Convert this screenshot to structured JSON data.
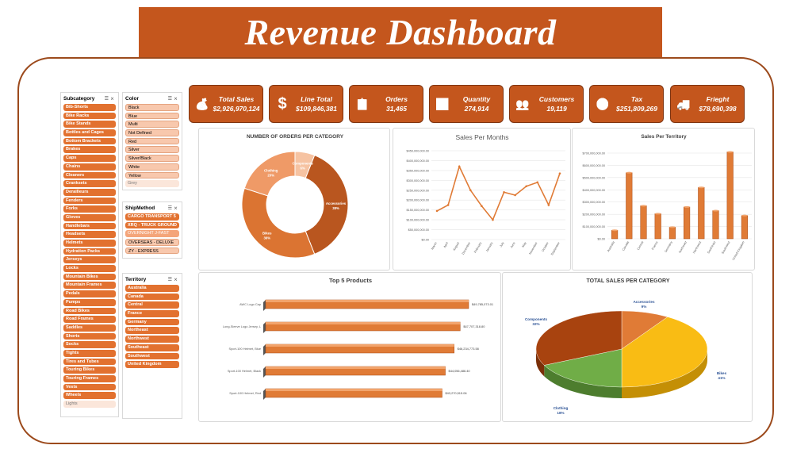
{
  "dashboard_title": "Revenue Dashboard",
  "colors": {
    "accent": "#c4561d",
    "bar": "#e07b36",
    "frame": "#9c4a1c"
  },
  "slicers": {
    "subcategory": {
      "title": "Subcategory",
      "items": [
        "Bib-Shorts",
        "Bike Racks",
        "Bike Stands",
        "Bottles and Cages",
        "Bottom Brackets",
        "Brakes",
        "Caps",
        "Chains",
        "Cleaners",
        "Cranksets",
        "Derailleurs",
        "Fenders",
        "Forks",
        "Gloves",
        "Handlebars",
        "Headsets",
        "Helmets",
        "Hydration Packs",
        "Jerseys",
        "Locks",
        "Mountain Bikes",
        "Mountain Frames",
        "Pedals",
        "Pumps",
        "Road Bikes",
        "Road Frames",
        "Saddles",
        "Shorts",
        "Socks",
        "Tights",
        "Tires and Tubes",
        "Touring Bikes",
        "Touring Frames",
        "Vests",
        "Wheels",
        "Lights"
      ]
    },
    "color": {
      "title": "Color",
      "items": [
        "Black",
        "Blue",
        "Multi",
        "Not Defined",
        "Red",
        "Silver",
        "Silver/Black",
        "White",
        "Yellow",
        "Grey"
      ]
    },
    "shipmethod": {
      "title": "ShipMethod",
      "items": [
        "CARGO TRANSPORT 5",
        "XRQ - TRUCK GROUND",
        "OVERNIGHT J-FAST",
        "OVERSEAS - DELUXE",
        "ZY - EXPRESS"
      ]
    },
    "territory": {
      "title": "Territory",
      "items": [
        "Australia",
        "Canada",
        "Central",
        "France",
        "Germany",
        "Northeast",
        "Northwest",
        "Southeast",
        "Southwest",
        "United Kingdom"
      ]
    }
  },
  "kpis": [
    {
      "label": "Total Sales",
      "value": "$2,926,970,124",
      "icon": "money-bag-icon"
    },
    {
      "label": "Line Total",
      "value": "$109,846,381",
      "icon": "dollar-icon"
    },
    {
      "label": "Orders",
      "value": "31,465",
      "icon": "clipboard-icon"
    },
    {
      "label": "Quantity",
      "value": "274,914",
      "icon": "presentation-icon"
    },
    {
      "label": "Customers",
      "value": "19,119",
      "icon": "people-icon"
    },
    {
      "label": "Tax",
      "value": "$251,809,269",
      "icon": "coins-icon"
    },
    {
      "label": "Frieght",
      "value": "$78,690,398",
      "icon": "truck-icon"
    }
  ],
  "chart_data": [
    {
      "id": "orders-per-category",
      "type": "pie",
      "title": "NUMBER OF ORDERS PER CATEGORY",
      "hole": true,
      "labels": [
        "Accessories",
        "Bikes",
        "Clothing",
        "Components"
      ],
      "values": [
        38,
        36,
        20,
        6
      ],
      "colors": [
        "#b9561f",
        "#db7432",
        "#ef9a67",
        "#f6c3a2"
      ]
    },
    {
      "id": "sales-per-months",
      "type": "line",
      "title": "Sales Per Months",
      "categories": [
        "March",
        "April",
        "August",
        "December",
        "February",
        "January",
        "July",
        "June",
        "May",
        "November",
        "October",
        "September"
      ],
      "values": [
        145000000,
        175000000,
        370000000,
        250000000,
        170000000,
        100000000,
        240000000,
        225000000,
        270000000,
        290000000,
        175000000,
        335000000
      ],
      "ylim": [
        0,
        450000000
      ],
      "yticks": [
        "$0.00",
        "$50,000,000.00",
        "$100,000,000.00",
        "$150,000,000.00",
        "$200,000,000.00",
        "$250,000,000.00",
        "$300,000,000.00",
        "$350,000,000.00",
        "$400,000,000.00",
        "$450,000,000.00"
      ]
    },
    {
      "id": "sales-per-territory",
      "type": "bar",
      "title": "Sales Per Territory",
      "categories": [
        "Australia",
        "Canada",
        "Central",
        "France",
        "Germany",
        "Northeast",
        "Northwest",
        "Southeast",
        "Southwest",
        "United Kingdom"
      ],
      "values": [
        70000000,
        540000000,
        270000000,
        205000000,
        95000000,
        260000000,
        420000000,
        230000000,
        710000000,
        190000000
      ],
      "ylim": [
        0,
        700000000
      ],
      "yticks": [
        "$0.00",
        "$100,000,000.00",
        "$200,000,000.00",
        "$300,000,000.00",
        "$400,000,000.00",
        "$500,000,000.00",
        "$600,000,000.00",
        "$700,000,000.00"
      ]
    },
    {
      "id": "top-5-products",
      "type": "bar",
      "orientation": "horizontal",
      "title": "Top 5 Products",
      "categories": [
        "AWC Logo Cap",
        "Long-Sleeve Logo Jersey, L",
        "Sport-100 Helmet, Blue",
        "Sport-100 Helmet, Black",
        "Sport-100 Helmet, Red"
      ],
      "values": [
        49785073.01,
        47707318.8,
        46234773.58,
        44056486.4,
        43270515.06
      ],
      "value_labels": [
        "$49,785,073.01",
        "$47,707,318.80",
        "$46,234,773.58",
        "$44,056,486.40",
        "$43,270,515.06"
      ]
    },
    {
      "id": "total-sales-per-category",
      "type": "pie",
      "title": "TOTAL SALES PER CATEGORY",
      "labels": [
        "Accessories",
        "Bikes",
        "Clothing",
        "Components"
      ],
      "values": [
        9,
        41,
        18,
        32
      ],
      "percent_labels": [
        "9%",
        "41%",
        "18%",
        "32%"
      ],
      "colors": [
        "#e07b36",
        "#f9bc14",
        "#70ad47",
        "#a8430f"
      ]
    }
  ]
}
